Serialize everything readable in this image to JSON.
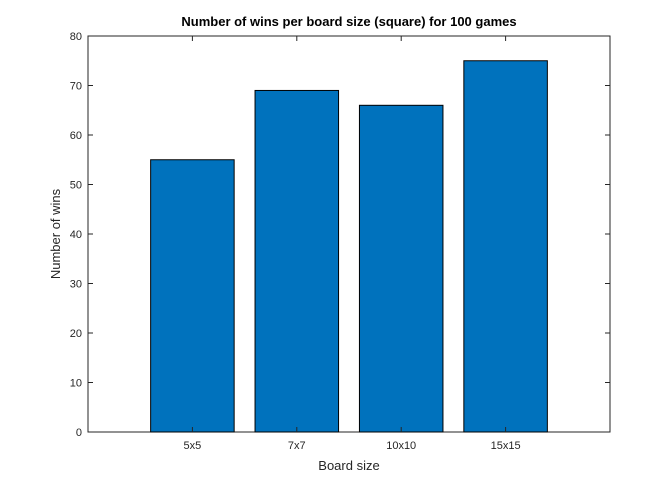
{
  "chart_data": {
    "type": "bar",
    "title": "Number of wins per board size (square) for 100 games",
    "xlabel": "Board size",
    "ylabel": "Number of wins",
    "categories": [
      "5x5",
      "7x7",
      "10x10",
      "15x15"
    ],
    "values": [
      55,
      69,
      66,
      75
    ],
    "ylim": [
      0,
      80
    ],
    "yticks": [
      0,
      10,
      20,
      30,
      40,
      50,
      60,
      70,
      80
    ],
    "grid": false,
    "bar_color": "#0072BD",
    "bar_edge_color": "#000000"
  }
}
